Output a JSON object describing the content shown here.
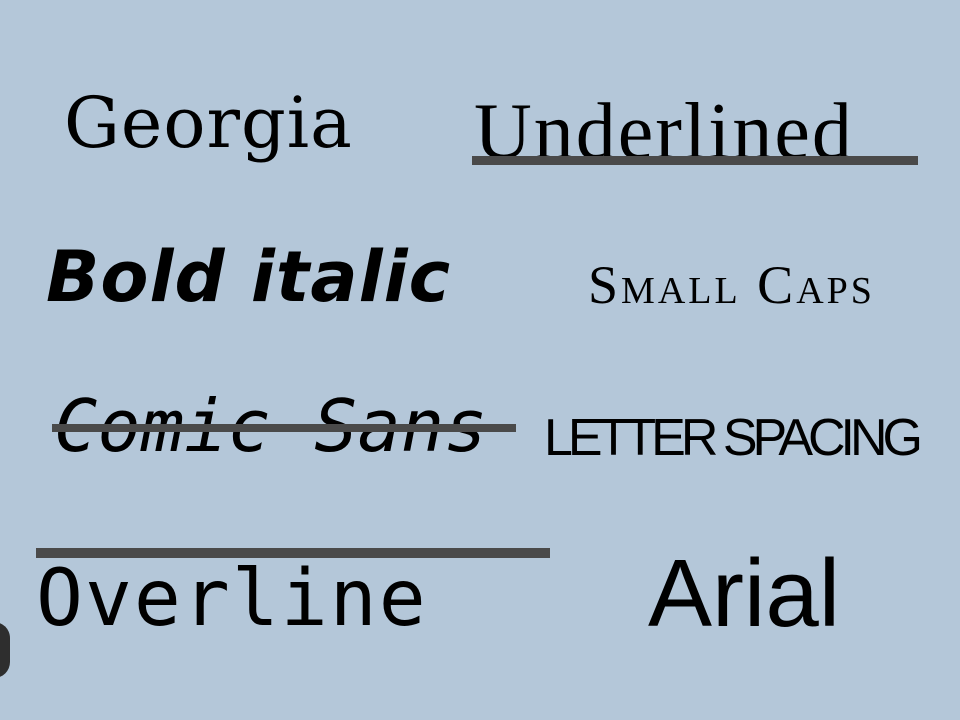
{
  "samples": {
    "georgia": "Georgia",
    "underlined": "Underlined",
    "bold_italic": "Bold italic",
    "small_caps": "Small Caps",
    "comic_sans": "Comic Sans",
    "letter_spacing": "LETTER SPACING",
    "overline": "Overline",
    "arial": "Arial"
  },
  "colors": {
    "background": "#b4c7d9",
    "text": "#000000",
    "decoration_lines": "#4a4a4a"
  }
}
